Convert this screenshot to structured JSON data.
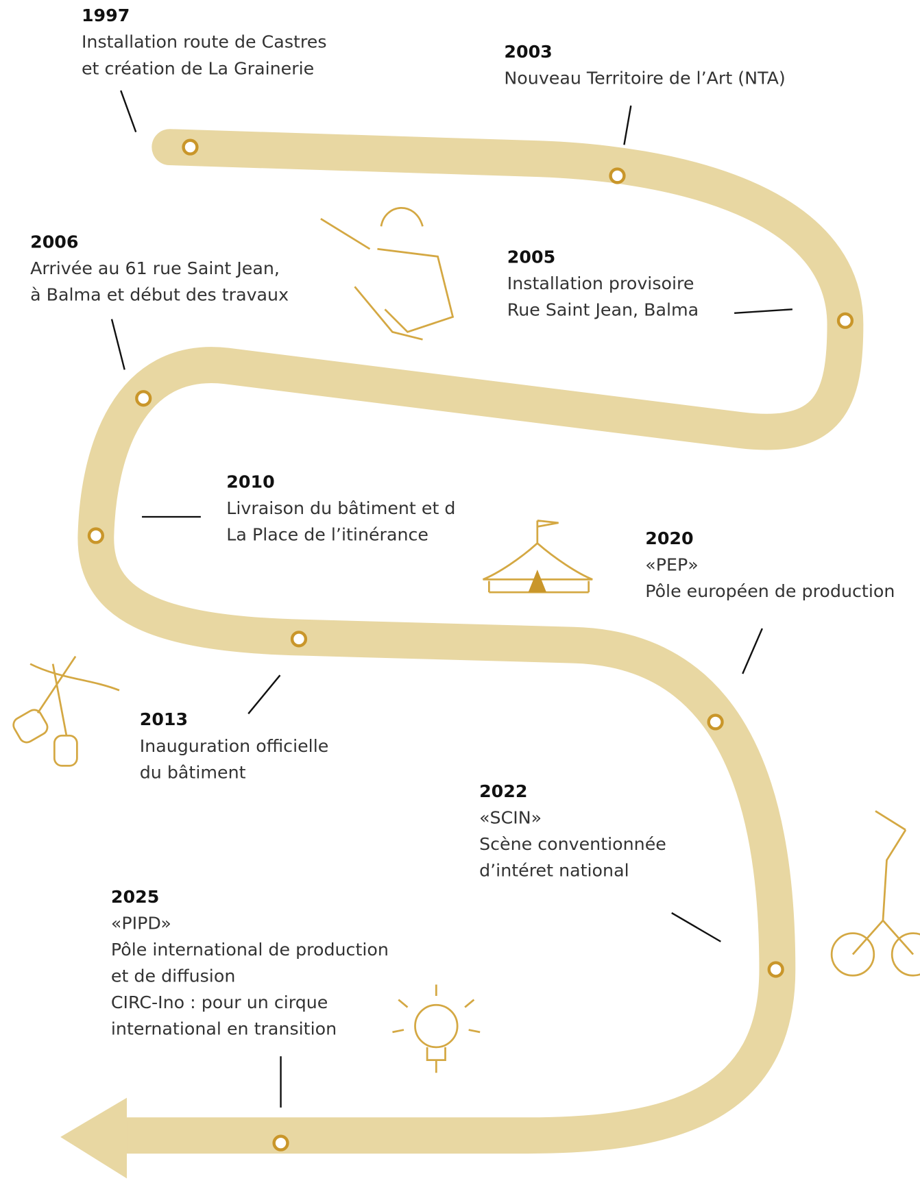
{
  "events": [
    {
      "year": "1997",
      "lines": [
        "Installation route de Castres",
        "et création de La Grainerie"
      ]
    },
    {
      "year": "2003",
      "lines": [
        "Nouveau Territoire de l’Art (NTA)"
      ]
    },
    {
      "year": "2006",
      "lines": [
        "Arrivée au 61 rue Saint Jean,",
        "à Balma et début des travaux"
      ]
    },
    {
      "year": "2005",
      "lines": [
        "Installation provisoire",
        "Rue Saint Jean, Balma"
      ]
    },
    {
      "year": "2010",
      "lines": [
        "Livraison du bâtiment et d",
        "La Place de l’itinérance"
      ]
    },
    {
      "year": "2020",
      "lines": [
        "«PEP»",
        "Pôle européen de production"
      ]
    },
    {
      "year": "2013",
      "lines": [
        "Inauguration officielle",
        "du bâtiment"
      ]
    },
    {
      "year": "2022",
      "lines": [
        "«SCIN»",
        "Scène conventionnée",
        "d’intéret national"
      ]
    },
    {
      "year": "2025",
      "lines": [
        "«PIPD»",
        "Pôle international de production",
        "et de diffusion",
        "CIRC-Ino : pour un cirque",
        "international en transition"
      ]
    }
  ]
}
